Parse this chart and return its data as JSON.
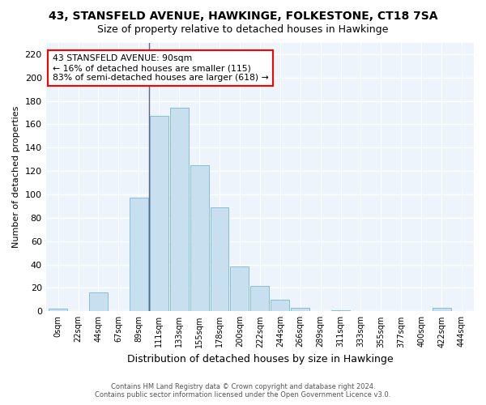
{
  "title": "43, STANSFELD AVENUE, HAWKINGE, FOLKESTONE, CT18 7SA",
  "subtitle": "Size of property relative to detached houses in Hawkinge",
  "xlabel": "Distribution of detached houses by size in Hawkinge",
  "ylabel": "Number of detached properties",
  "bar_color": "#c8dff0",
  "bar_edge_color": "#7ab8d4",
  "annotation_line1": "43 STANSFELD AVENUE: 90sqm",
  "annotation_line2": "← 16% of detached houses are smaller (115)",
  "annotation_line3": "83% of semi-detached houses are larger (618) →",
  "footer_line1": "Contains HM Land Registry data © Crown copyright and database right 2024.",
  "footer_line2": "Contains public sector information licensed under the Open Government Licence v3.0.",
  "bin_labels": [
    "0sqm",
    "22sqm",
    "44sqm",
    "67sqm",
    "89sqm",
    "111sqm",
    "133sqm",
    "155sqm",
    "178sqm",
    "200sqm",
    "222sqm",
    "244sqm",
    "266sqm",
    "289sqm",
    "311sqm",
    "333sqm",
    "355sqm",
    "377sqm",
    "400sqm",
    "422sqm",
    "444sqm"
  ],
  "bar_heights": [
    2,
    0,
    16,
    0,
    97,
    167,
    174,
    125,
    89,
    38,
    22,
    10,
    3,
    0,
    1,
    0,
    0,
    0,
    0,
    3,
    0
  ],
  "ylim": [
    0,
    230
  ],
  "yticks": [
    0,
    20,
    40,
    60,
    80,
    100,
    120,
    140,
    160,
    180,
    200,
    220
  ],
  "highlight_bar_index": 4,
  "vline_x": 4.5,
  "background_color": "#eef4fb"
}
